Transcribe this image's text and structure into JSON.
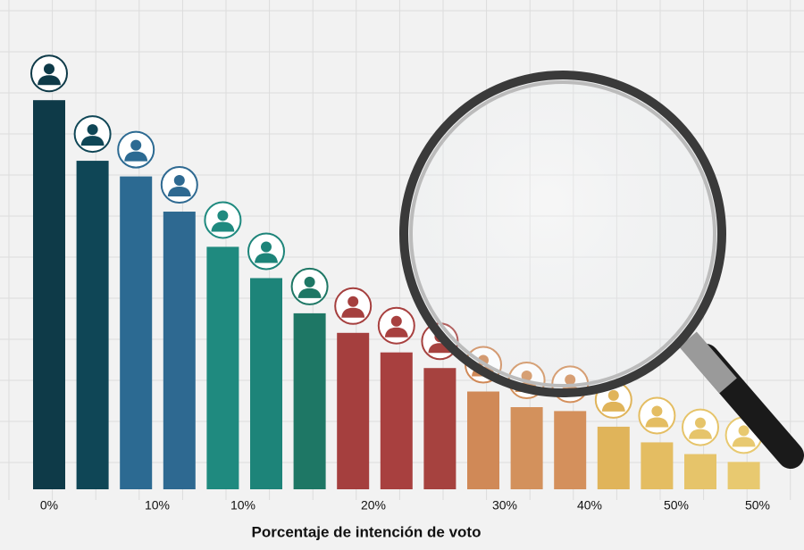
{
  "chart_data": {
    "type": "bar",
    "x_label": "Porcentaje de intención de voto",
    "x_tick_labels": [
      "0%",
      "10%",
      "10%",
      "20%",
      "30%",
      "40%",
      "50%",
      "50%"
    ],
    "values": [
      99.5,
      84,
      80,
      71,
      62,
      54,
      45,
      40,
      35,
      31,
      25,
      21,
      20,
      16,
      12,
      9,
      7
    ],
    "colors": [
      "#0e3a48",
      "#0f4656",
      "#2c6a92",
      "#2e6991",
      "#1f8a7f",
      "#1d8479",
      "#1e7765",
      "#a53f3e",
      "#a8403f",
      "#a6423f",
      "#d08957",
      "#d3915c",
      "#d4905c",
      "#e0b45a",
      "#e4bd62",
      "#e6c46a",
      "#e8c970"
    ],
    "ylim": [
      0,
      100
    ],
    "grid": true
  }
}
